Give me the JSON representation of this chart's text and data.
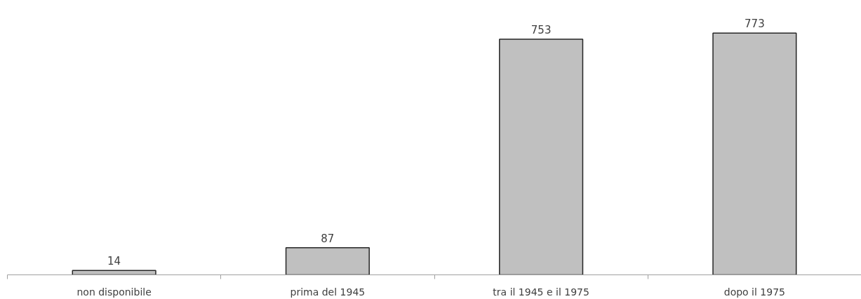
{
  "chart_data": {
    "type": "bar",
    "categories": [
      "non disponibile",
      "prima del 1945",
      "tra il 1945 e il 1975",
      "dopo il 1975"
    ],
    "values": [
      14,
      87,
      753,
      773
    ],
    "color": "#c0c0c0",
    "data_labels": true,
    "grid": false
  }
}
